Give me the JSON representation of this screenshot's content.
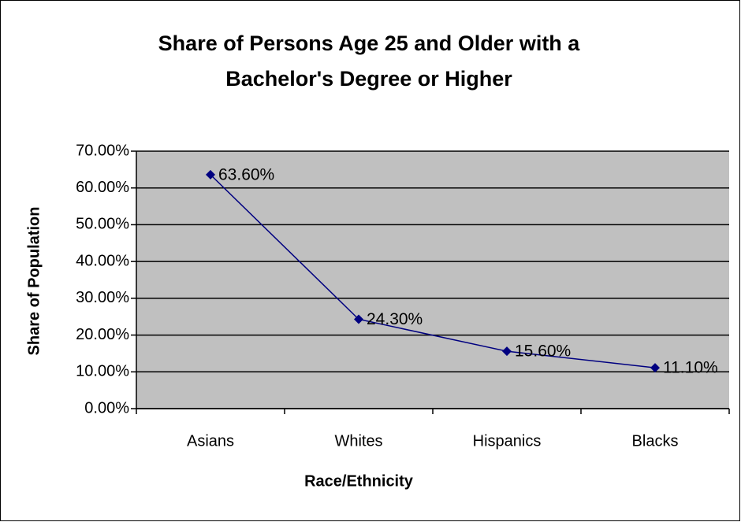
{
  "chart_data": {
    "type": "line",
    "title": [
      "Share of Persons Age 25 and Older with a",
      "Bachelor's Degree or Higher"
    ],
    "x_label": "Race/Ethnicity",
    "y_label": "Share of Population",
    "categories": [
      "Asians",
      "Whites",
      "Hispanics",
      "Blacks"
    ],
    "series": [
      {
        "name": "Share of Population",
        "color": "#000080",
        "values": [
          63.6,
          24.3,
          15.6,
          11.1
        ],
        "value_labels": [
          "63.60%",
          "24.30%",
          "15.60%",
          "11.10%"
        ]
      }
    ],
    "ylim": [
      0,
      70
    ],
    "yticks": [
      {
        "value": 0,
        "label": "0.00%"
      },
      {
        "value": 10,
        "label": "10.00%"
      },
      {
        "value": 20,
        "label": "20.00%"
      },
      {
        "value": 30,
        "label": "30.00%"
      },
      {
        "value": 40,
        "label": "40.00%"
      },
      {
        "value": 50,
        "label": "50.00%"
      },
      {
        "value": 60,
        "label": "60.00%"
      },
      {
        "value": 70,
        "label": "70.00%"
      }
    ],
    "grid": true,
    "plot_background": "#c0c0c0"
  }
}
